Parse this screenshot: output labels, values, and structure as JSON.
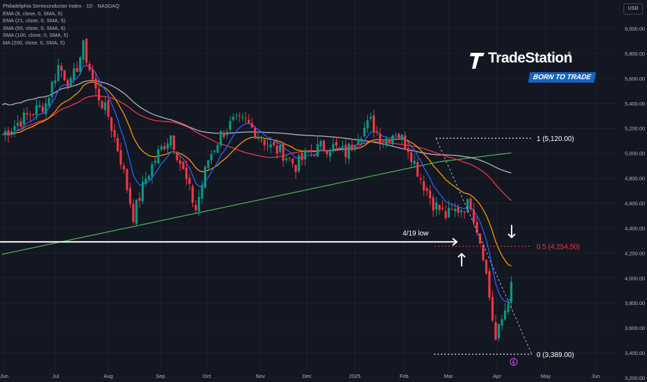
{
  "header": {
    "symbol_line": "Philadelphia Semiconductor Index · 1D · NASDAQ",
    "indicators": [
      "EMA (8, close, 0, SMA, 5)",
      "EMA (21, close, 0, SMA, 5)",
      "SMA (50, close, 0, SMA, 5)",
      "SMA (100, close, 0, SMA, 5)",
      "MA (200, close, 0, SMA, 5)"
    ],
    "currency": "USD"
  },
  "logo": {
    "name": "TradeStation",
    "reg": "®",
    "tagline": "BORN TO TRADE"
  },
  "colors": {
    "background": "#131722",
    "up": "#089981",
    "down": "#f23645",
    "ema8": "#2962ff",
    "ema21": "#ff9800",
    "sma50": "#f23645",
    "sma100": "#b2b5be",
    "ma200": "#4caf50",
    "grid": "#1e222d",
    "annotation": "#ffffff"
  },
  "chart_data": {
    "type": "candlestick",
    "xlabels": [
      "Jun",
      "Jul",
      "Aug",
      "Sep",
      "Oct",
      "Nov",
      "Dec",
      "2025",
      "Feb",
      "Mar",
      "Apr",
      "May",
      "Jun"
    ],
    "ytick_labels": [
      "6,000.00",
      "5,800.00",
      "5,600.00",
      "5,400.00",
      "5,200.00",
      "5,000.00",
      "4,800.00",
      "4,600.00",
      "4,400.00",
      "4,200.00",
      "4,000.00",
      "3,800.00",
      "3,600.00",
      "3,400.00",
      "3,200.00"
    ],
    "ylim": [
      3150,
      6150
    ],
    "price_path": [
      [
        0,
        5150
      ],
      [
        8,
        5300
      ],
      [
        14,
        5400
      ],
      [
        18,
        5700
      ],
      [
        22,
        5550
      ],
      [
        26,
        5850
      ],
      [
        30,
        5500
      ],
      [
        34,
        5300
      ],
      [
        38,
        4950
      ],
      [
        42,
        4500
      ],
      [
        46,
        4800
      ],
      [
        50,
        5000
      ],
      [
        54,
        5150
      ],
      [
        58,
        4850
      ],
      [
        62,
        4550
      ],
      [
        66,
        4950
      ],
      [
        70,
        5150
      ],
      [
        74,
        5250
      ],
      [
        78,
        5250
      ],
      [
        82,
        5150
      ],
      [
        86,
        5050
      ],
      [
        90,
        5000
      ],
      [
        94,
        4900
      ],
      [
        98,
        5000
      ],
      [
        102,
        5050
      ],
      [
        106,
        5050
      ],
      [
        110,
        5000
      ],
      [
        114,
        5150
      ],
      [
        118,
        5250
      ],
      [
        122,
        5100
      ],
      [
        126,
        5180
      ],
      [
        130,
        5050
      ],
      [
        134,
        4800
      ],
      [
        138,
        4600
      ],
      [
        142,
        4500
      ],
      [
        146,
        4550
      ],
      [
        150,
        4600
      ],
      [
        154,
        4200
      ],
      [
        158,
        3500
      ],
      [
        161,
        3750
      ],
      [
        163,
        3920
      ]
    ],
    "fib_levels": [
      {
        "label": "1 (5,120.00)",
        "value": 5120
      },
      {
        "label": "0.5 (4,254.50)",
        "value": 4254.5
      },
      {
        "label": "0 (3,389.00)",
        "value": 3389
      }
    ],
    "horizontal_line": {
      "label": "4/19 low",
      "value": 4290
    }
  }
}
